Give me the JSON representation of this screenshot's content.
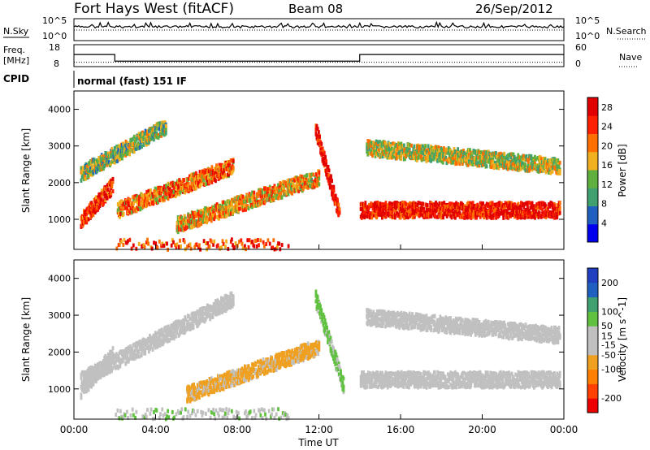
{
  "header": {
    "station": "Fort Hays West (fitACF)",
    "beam": "Beam 08",
    "date": "26/Sep/2012"
  },
  "chart_data": [
    {
      "type": "line",
      "panel": "noise",
      "left_label": "N.Sky",
      "left_ticks": [
        "10^5",
        "10^0"
      ],
      "right_label": "N.Search",
      "right_ticks": [
        "10^5",
        "10^0"
      ]
    },
    {
      "type": "line",
      "panel": "frequency",
      "left_label_lines": [
        "Freq.",
        "[MHz]"
      ],
      "left_ticks": [
        18,
        8
      ],
      "left_ylim": [
        8,
        18
      ],
      "right_label": "Nave",
      "right_ticks": [
        60,
        0
      ],
      "right_ylim": [
        0,
        60
      ],
      "freq_steps": [
        {
          "t": 0,
          "v": 13.5
        },
        {
          "t": 2.0,
          "v": 10.5
        },
        {
          "t": 14.0,
          "v": 13.5
        },
        {
          "t": 24,
          "v": 13.5
        }
      ],
      "nave_level": 12
    },
    {
      "type": "text",
      "panel": "cpid",
      "label": "CPID",
      "program": "normal (fast) 151 IF"
    },
    {
      "type": "heatmap",
      "panel": "power",
      "ylabel": "Slant Range [km]",
      "yticks": [
        1000,
        2000,
        3000,
        4000
      ],
      "ylim": [
        180,
        4500
      ],
      "xlim": [
        0,
        24
      ],
      "colorbar": {
        "label": "Power [dB]",
        "ticks": [
          4,
          8,
          12,
          16,
          20,
          24,
          28
        ],
        "range": [
          0,
          30
        ],
        "colors": [
          "#0000ee",
          "#2060c0",
          "#40a070",
          "#60b040",
          "#f0b020",
          "#ff7000",
          "#ff2000",
          "#e00000"
        ]
      },
      "bands": [
        {
          "t0": 0.3,
          "t1": 1.9,
          "r0": 1000,
          "r1": 2000,
          "level": 0.85
        },
        {
          "t0": 2.1,
          "t1": 7.8,
          "r0": 1300,
          "r1": 2500,
          "level": 0.7
        },
        {
          "t0": 5.0,
          "t1": 12.0,
          "r0": 900,
          "r1": 2200,
          "level": 0.6
        },
        {
          "t0": 0.3,
          "t1": 4.5,
          "r0": 2300,
          "r1": 3600,
          "level": 0.45
        },
        {
          "t0": 11.8,
          "t1": 13.0,
          "r0": 3500,
          "r1": 1100,
          "level": 0.95
        },
        {
          "t0": 14.0,
          "t1": 23.8,
          "r0": 1300,
          "r1": 1300,
          "level": 0.9
        },
        {
          "t0": 14.3,
          "t1": 23.8,
          "r0": 3000,
          "r1": 2500,
          "level": 0.5
        },
        {
          "t0": 2.0,
          "t1": 10.5,
          "r0": 300,
          "r1": 300,
          "level": 0.8
        }
      ]
    },
    {
      "type": "heatmap",
      "panel": "velocity",
      "ylabel": "Slant Range [km]",
      "yticks": [
        1000,
        2000,
        3000,
        4000
      ],
      "ylim": [
        180,
        4500
      ],
      "xlim": [
        0,
        24
      ],
      "xticks": [
        "00:00",
        "04:00",
        "08:00",
        "12:00",
        "16:00",
        "20:00",
        "00:00"
      ],
      "xlabel": "Time UT",
      "colorbar": {
        "label": "Velocity [m s^-1]",
        "ticks": [
          200,
          100,
          50,
          15,
          -15,
          -50,
          -100,
          -200
        ],
        "range": [
          -250,
          250
        ],
        "colors": [
          "#ee0000",
          "#ff4000",
          "#ff8000",
          "#f0a020",
          "#c0c0c0",
          "#c0c0c0",
          "#60c040",
          "#40a070",
          "#2060c0",
          "#2040c0"
        ]
      },
      "bands": [
        {
          "t0": 0.3,
          "t1": 1.9,
          "r0": 1000,
          "r1": 2000,
          "vel": 0
        },
        {
          "t0": 0.3,
          "t1": 7.8,
          "r0": 1300,
          "r1": 3500,
          "vel": -20
        },
        {
          "t0": 5.5,
          "t1": 12.0,
          "r0": 900,
          "r1": 2200,
          "vel": -60
        },
        {
          "t0": 11.8,
          "t1": 13.2,
          "r0": 3500,
          "r1": 1100,
          "vel": 60
        },
        {
          "t0": 14.0,
          "t1": 23.8,
          "r0": 1300,
          "r1": 1300,
          "vel": 0
        },
        {
          "t0": 14.3,
          "t1": 23.8,
          "r0": 3000,
          "r1": 2500,
          "vel": 0
        },
        {
          "t0": 2.0,
          "t1": 10.5,
          "r0": 300,
          "r1": 300,
          "vel": 40
        }
      ]
    }
  ]
}
